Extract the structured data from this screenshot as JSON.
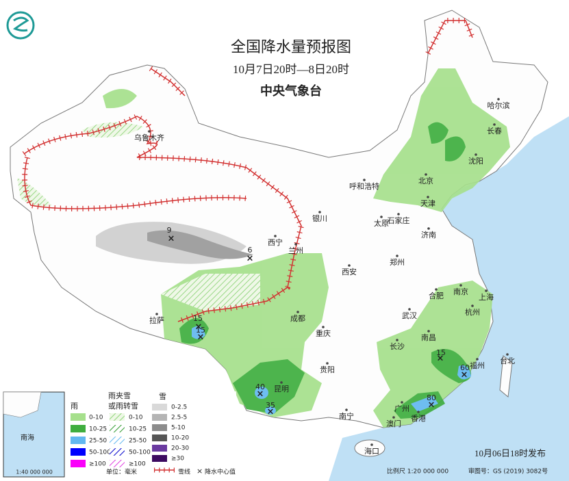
{
  "header": {
    "title": "全国降水量预报图",
    "time": "10月7日20时—8日20时",
    "issuer": "中央气象台"
  },
  "cities": [
    "哈尔滨",
    "长春",
    "沈阳",
    "北京",
    "天津",
    "呼和浩特",
    "石家庄",
    "太原",
    "济南",
    "银川",
    "西宁",
    "兰州",
    "西安",
    "郑州",
    "合肥",
    "南京",
    "上海",
    "武汉",
    "杭州",
    "成都",
    "重庆",
    "拉萨",
    "长沙",
    "南昌",
    "福州",
    "台北",
    "贵阳",
    "昆明",
    "南宁",
    "广州",
    "澳门",
    "香港",
    "海口",
    "乌鲁木齐"
  ],
  "centers": [
    9,
    6,
    15,
    15,
    15,
    60,
    80,
    40,
    35
  ],
  "legend": {
    "rain": {
      "title": "雨",
      "items": [
        "0-10",
        "10-25",
        "25-50",
        "50-100",
        "≥100"
      ]
    },
    "sleet": {
      "title": [
        "雨夹雪",
        "或雨转雪"
      ],
      "items": [
        "0-10",
        "10-25",
        "25-50",
        "50-100",
        "≥100"
      ]
    },
    "snow": {
      "title": "雪",
      "items": [
        "0-2.5",
        "2.5-5",
        "5-10",
        "10-20",
        "20-30",
        "≥30"
      ]
    },
    "unit": "单位：毫米",
    "snow_line": "雪线",
    "center_label": "降水中心值"
  },
  "inset": {
    "sea": "南海",
    "scale": "1:40 000 000"
  },
  "footer": {
    "issued": "10月06日18时发布",
    "scale": "比例尺 1:20 000 000",
    "review": "审图号：GS (2019) 3082号"
  }
}
